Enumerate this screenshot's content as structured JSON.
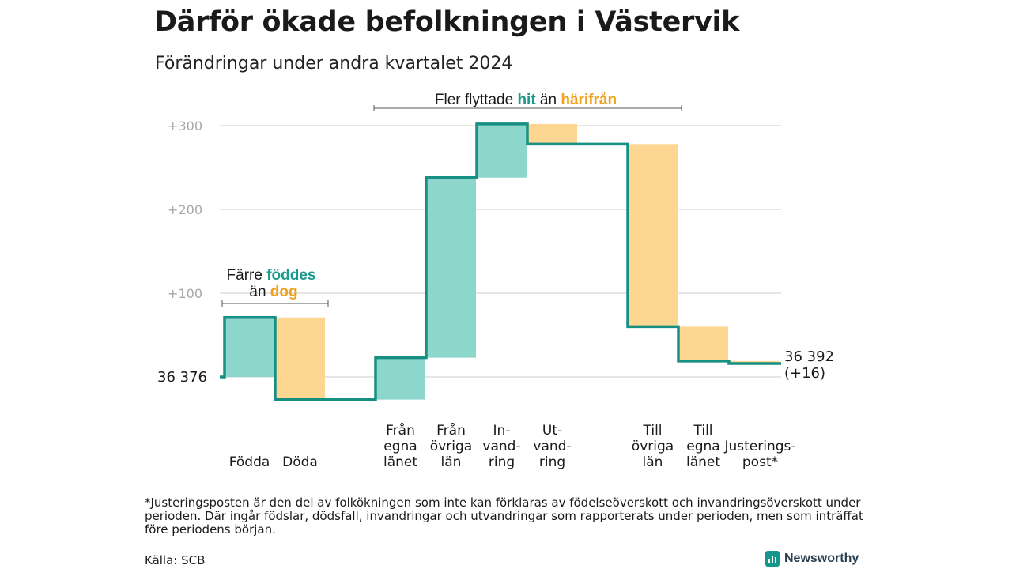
{
  "title": "Därför ökade befolkningen i Västervik",
  "subtitle": "Förändringar under andra kvartalet 2024",
  "footnote": "*Justeringsposten är den del av folkökningen som inte kan förklaras av födelseöverskott och invandringsöverskott under perioden. Där ingår födslar, dödsfall, invandringar och utvandringar som rapporterats under perioden, men som inträffat före periodens början.",
  "source": "Källa: SCB",
  "brand": "Newsworthy",
  "colors": {
    "increase": "#8dd6cb",
    "decrease": "#fdd692",
    "step_line": "#178f83",
    "grid": "#dddddd",
    "teal_text": "#1a9a8c",
    "orange_text": "#f0a21c"
  },
  "chart_data": {
    "type": "waterfall",
    "start_label": "36  376",
    "end_label": "36 392",
    "end_change_label": "(+16)",
    "y_ticks": [
      {
        "value": 100,
        "label": "+100"
      },
      {
        "value": 200,
        "label": "+200"
      },
      {
        "value": 300,
        "label": "+300"
      }
    ],
    "ylim": [
      -40,
      320
    ],
    "gap_after": [
      1,
      5
    ],
    "categories": [
      {
        "id": "fodda",
        "lines": [
          "Födda"
        ],
        "from": 0,
        "to": 71
      },
      {
        "id": "doda",
        "lines": [
          "Döda"
        ],
        "from": 71,
        "to": -27
      },
      {
        "id": "fran-egna-lanet",
        "lines": [
          "Från",
          "egna",
          "länet"
        ],
        "from": -27,
        "to": 23
      },
      {
        "id": "fran-ovriga-lan",
        "lines": [
          "Från",
          "övriga",
          "län"
        ],
        "from": 23,
        "to": 238
      },
      {
        "id": "invandring",
        "lines": [
          "In-",
          "vand-",
          "ring"
        ],
        "from": 238,
        "to": 302
      },
      {
        "id": "utvandring",
        "lines": [
          "Ut-",
          "vand-",
          "ring"
        ],
        "from": 302,
        "to": 278
      },
      {
        "id": "till-ovriga-lan",
        "lines": [
          "Till",
          "övriga",
          "län"
        ],
        "from": 278,
        "to": 60
      },
      {
        "id": "till-egna-lanet",
        "lines": [
          "Till",
          "egna",
          "länet"
        ],
        "from": 60,
        "to": 19
      },
      {
        "id": "justeringspost",
        "lines": [
          "Justerings-",
          "post*"
        ],
        "from": 19,
        "to": 16
      }
    ],
    "annotations": [
      {
        "id": "birth-death",
        "line1": "Färre ",
        "line1_highlight": "föddes",
        "line2": "än ",
        "line2_highlight": "dog"
      },
      {
        "id": "migration",
        "text1": "Fler flyttade ",
        "highlight1": "hit",
        "text2": " än ",
        "highlight2": "härifrån"
      }
    ]
  }
}
